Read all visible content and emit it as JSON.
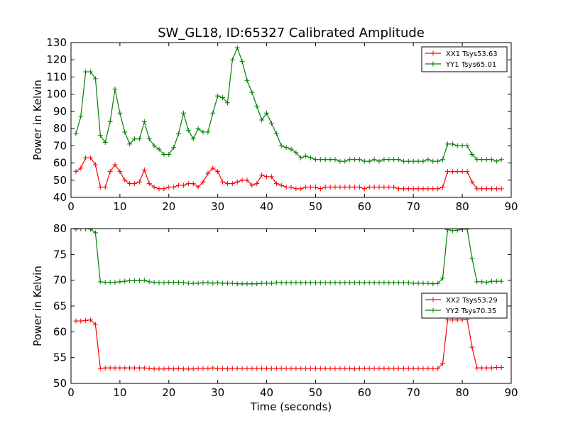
{
  "figure": {
    "title": "SW_GL18, ID:65327 Calibrated Amplitude"
  },
  "chart_data": [
    {
      "type": "line",
      "title": "SW_GL18, ID:65327 Calibrated Amplitude",
      "xlabel": "",
      "ylabel": "Power in Kelvin",
      "xlim": [
        0,
        90
      ],
      "ylim": [
        40,
        130
      ],
      "xticks": [
        0,
        10,
        20,
        30,
        40,
        50,
        60,
        70,
        80,
        90
      ],
      "yticks": [
        40,
        50,
        60,
        70,
        80,
        90,
        100,
        110,
        120,
        130
      ],
      "grid": false,
      "legend": "top-right",
      "x": [
        1,
        2,
        3,
        4,
        5,
        6,
        7,
        8,
        9,
        10,
        11,
        12,
        13,
        14,
        15,
        16,
        17,
        18,
        19,
        20,
        21,
        22,
        23,
        24,
        25,
        26,
        27,
        28,
        29,
        30,
        31,
        32,
        33,
        34,
        35,
        36,
        37,
        38,
        39,
        40,
        41,
        42,
        43,
        44,
        45,
        46,
        47,
        48,
        49,
        50,
        51,
        52,
        53,
        54,
        55,
        56,
        57,
        58,
        59,
        60,
        61,
        62,
        63,
        64,
        65,
        66,
        67,
        68,
        69,
        70,
        71,
        72,
        73,
        74,
        75,
        76,
        77,
        78,
        79,
        80,
        81,
        82,
        83,
        84,
        85,
        86,
        87,
        88
      ],
      "series": [
        {
          "name": "XX1 Tsys53.63",
          "color": "#ff0000",
          "values": [
            55,
            57,
            63,
            63,
            59,
            46,
            46,
            55,
            59,
            55,
            50,
            48,
            48,
            49,
            56,
            48,
            46,
            45,
            45,
            46,
            46,
            47,
            47,
            48,
            48,
            46,
            49,
            54,
            57,
            55,
            49,
            48,
            48,
            49,
            50,
            50,
            47,
            48,
            53,
            52,
            52,
            48,
            47,
            46,
            46,
            45,
            45,
            46,
            46,
            46,
            45,
            46,
            46,
            46,
            46,
            46,
            46,
            46,
            46,
            45,
            46,
            46,
            46,
            46,
            46,
            46,
            45,
            45,
            45,
            45,
            45,
            45,
            45,
            45,
            45,
            46,
            55,
            55,
            55,
            55,
            55,
            49,
            45,
            45,
            45,
            45,
            45,
            45
          ]
        },
        {
          "name": "YY1 Tsys65.01",
          "color": "#008000",
          "values": [
            77,
            87,
            113,
            113,
            109,
            76,
            72,
            84,
            103,
            89,
            78,
            71,
            74,
            74,
            84,
            74,
            70,
            68,
            65,
            65,
            69,
            77,
            89,
            79,
            74,
            80,
            78,
            78,
            89,
            99,
            98,
            95,
            120,
            127,
            119,
            108,
            101,
            93,
            85,
            89,
            83,
            77,
            70,
            69,
            68,
            66,
            63,
            64,
            63,
            62,
            62,
            62,
            62,
            62,
            61,
            61,
            62,
            62,
            62,
            61,
            61,
            62,
            61,
            62,
            62,
            62,
            62,
            61,
            61,
            61,
            61,
            61,
            62,
            61,
            61,
            62,
            71,
            71,
            70,
            70,
            70,
            65,
            62,
            62,
            62,
            62,
            61,
            62
          ]
        }
      ]
    },
    {
      "type": "line",
      "title": "",
      "xlabel": "Time (seconds)",
      "ylabel": "Power in Kelvin",
      "xlim": [
        0,
        90
      ],
      "ylim": [
        50,
        80
      ],
      "xticks": [
        0,
        10,
        20,
        30,
        40,
        50,
        60,
        70,
        80,
        90
      ],
      "yticks": [
        50,
        55,
        60,
        65,
        70,
        75,
        80
      ],
      "grid": false,
      "legend": "center-right",
      "x": [
        1,
        2,
        3,
        4,
        5,
        6,
        7,
        8,
        9,
        10,
        11,
        12,
        13,
        14,
        15,
        16,
        17,
        18,
        19,
        20,
        21,
        22,
        23,
        24,
        25,
        26,
        27,
        28,
        29,
        30,
        31,
        32,
        33,
        34,
        35,
        36,
        37,
        38,
        39,
        40,
        41,
        42,
        43,
        44,
        45,
        46,
        47,
        48,
        49,
        50,
        51,
        52,
        53,
        54,
        55,
        56,
        57,
        58,
        59,
        60,
        61,
        62,
        63,
        64,
        65,
        66,
        67,
        68,
        69,
        70,
        71,
        72,
        73,
        74,
        75,
        76,
        77,
        78,
        79,
        80,
        81,
        82,
        83,
        84,
        85,
        86,
        87,
        88
      ],
      "series": [
        {
          "name": "XX2 Tsys53.29",
          "color": "#ff0000",
          "values": [
            62.1,
            62.1,
            62.2,
            62.3,
            61.4,
            52.9,
            53.0,
            53.0,
            53.0,
            53.0,
            53.0,
            53.0,
            53.0,
            53.0,
            53.0,
            52.9,
            52.8,
            52.8,
            52.8,
            52.9,
            52.8,
            52.9,
            52.8,
            52.8,
            52.8,
            52.9,
            52.9,
            52.9,
            53.0,
            52.9,
            52.9,
            52.8,
            52.9,
            52.9,
            52.9,
            52.9,
            52.9,
            52.9,
            52.9,
            52.9,
            52.9,
            52.9,
            52.9,
            52.9,
            52.9,
            52.9,
            52.9,
            52.9,
            52.9,
            52.9,
            52.9,
            52.9,
            52.9,
            52.9,
            52.9,
            52.9,
            52.9,
            52.8,
            52.9,
            52.9,
            52.9,
            52.9,
            52.9,
            52.9,
            52.9,
            52.9,
            52.9,
            52.9,
            52.9,
            52.9,
            52.9,
            52.9,
            52.9,
            52.9,
            52.9,
            53.9,
            62.3,
            62.3,
            62.3,
            62.3,
            62.4,
            57.0,
            53.0,
            53.0,
            53.0,
            53.0,
            53.1,
            53.1
          ]
        },
        {
          "name": "YY2 Tsys70.35",
          "color": "#008000",
          "values": [
            79.9,
            80.0,
            80.0,
            79.9,
            79.2,
            69.7,
            69.6,
            69.6,
            69.6,
            69.7,
            69.8,
            69.9,
            69.9,
            69.9,
            70.0,
            69.7,
            69.6,
            69.5,
            69.5,
            69.6,
            69.6,
            69.6,
            69.5,
            69.4,
            69.4,
            69.4,
            69.5,
            69.5,
            69.4,
            69.5,
            69.4,
            69.4,
            69.4,
            69.3,
            69.3,
            69.3,
            69.3,
            69.3,
            69.4,
            69.4,
            69.4,
            69.5,
            69.5,
            69.5,
            69.5,
            69.5,
            69.5,
            69.5,
            69.5,
            69.5,
            69.5,
            69.5,
            69.5,
            69.5,
            69.5,
            69.5,
            69.5,
            69.5,
            69.5,
            69.5,
            69.5,
            69.5,
            69.5,
            69.5,
            69.5,
            69.5,
            69.5,
            69.5,
            69.5,
            69.4,
            69.4,
            69.4,
            69.4,
            69.3,
            69.4,
            70.4,
            79.8,
            79.6,
            79.7,
            79.9,
            79.9,
            74.2,
            69.7,
            69.7,
            69.6,
            69.8,
            69.8,
            69.8
          ]
        }
      ]
    }
  ]
}
